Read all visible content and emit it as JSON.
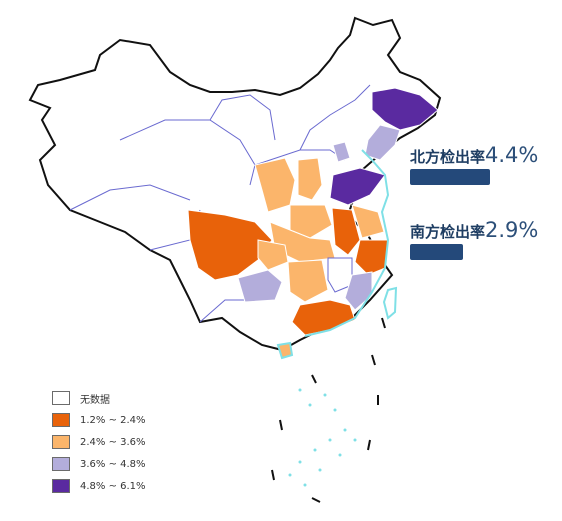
{
  "colors": {
    "no_data": "#ffffff",
    "c1": "#e8620a",
    "c2": "#fbb56b",
    "c3": "#b3addb",
    "c4": "#5a2aa0",
    "outline_sea": "#7fe0e6",
    "bar": "#24497a"
  },
  "legend": {
    "items": [
      {
        "label": "无数据",
        "color_key": "no_data"
      },
      {
        "label": "1.2% ~ 2.4%",
        "color_key": "c1"
      },
      {
        "label": "2.4% ~ 3.6%",
        "color_key": "c2"
      },
      {
        "label": "3.6% ~ 4.8%",
        "color_key": "c3"
      },
      {
        "label": "4.8% ~ 6.1%",
        "color_key": "c4"
      }
    ]
  },
  "north": {
    "label": "北方检出率",
    "value": "4.4%",
    "rate": 4.4
  },
  "south": {
    "label": "南方检出率",
    "value": "2.9%",
    "rate": 2.9
  }
}
